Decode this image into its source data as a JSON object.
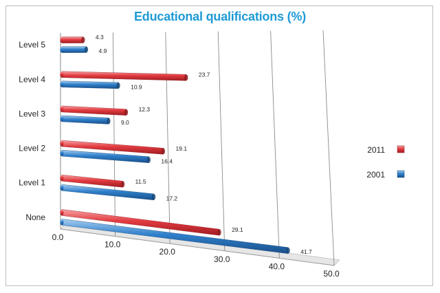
{
  "chart_data": {
    "type": "bar",
    "orientation": "horizontal",
    "title": "Educational qualifications (%)",
    "categories": [
      "Level 5",
      "Level 4",
      "Level 3",
      "Level 2",
      "Level 1",
      "None"
    ],
    "series": [
      {
        "name": "2011",
        "color": "#e03a3e",
        "values": [
          4.3,
          23.7,
          12.3,
          19.1,
          11.5,
          29.1
        ]
      },
      {
        "name": "2001",
        "color": "#2e7fc9",
        "values": [
          4.9,
          10.9,
          9.0,
          16.4,
          17.2,
          41.7
        ]
      }
    ],
    "value_labels": {
      "2011": [
        "4.3",
        "23.7",
        "12.3",
        "19.1",
        "11.5",
        "29.1"
      ],
      "2001": [
        "4.9",
        "10.9",
        "9.0",
        "16.4",
        "17.2",
        "41.7"
      ]
    },
    "x_ticks": [
      "0.0",
      "10.0",
      "20.0",
      "30.0",
      "40.0",
      "50.0"
    ],
    "xlim": [
      0,
      50
    ],
    "grid": true,
    "legend": "right"
  }
}
